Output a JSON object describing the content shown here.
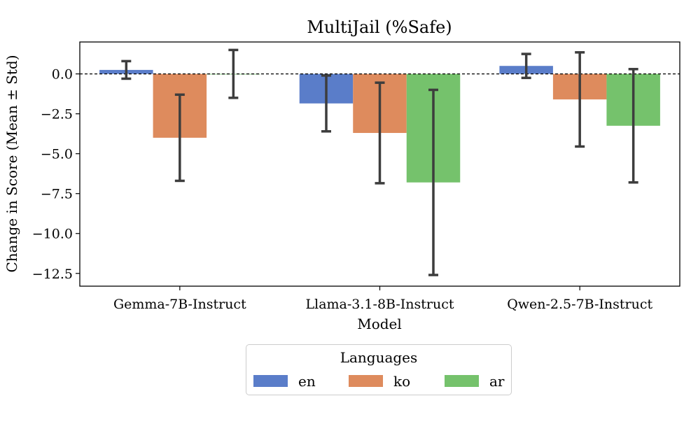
{
  "chart_data": {
    "type": "bar",
    "title": "MultiJail (%Safe)",
    "xlabel": "Model",
    "ylabel": "Change in Score (Mean ± Std)",
    "categories": [
      "Gemma-7B-Instruct",
      "Llama-3.1-8B-Instruct",
      "Qwen-2.5-7B-Instruct"
    ],
    "series": [
      {
        "name": "en",
        "color": "#5A7DC9",
        "values": [
          0.25,
          -1.85,
          0.5
        ],
        "std": [
          0.55,
          1.75,
          0.75
        ]
      },
      {
        "name": "ko",
        "color": "#DE8B5D",
        "values": [
          -4.0,
          -3.7,
          -1.6
        ],
        "std": [
          2.7,
          3.15,
          2.95
        ]
      },
      {
        "name": "ar",
        "color": "#75C26C",
        "values": [
          0.0,
          -6.8,
          -3.25
        ],
        "std": [
          1.5,
          5.8,
          3.55
        ]
      }
    ],
    "ylim": [
      -13.3,
      2.0
    ],
    "yticks": [
      0.0,
      -2.5,
      -5.0,
      -7.5,
      -10.0,
      -12.5
    ],
    "ytick_labels": [
      "0.0",
      "−2.5",
      "−5.0",
      "−7.5",
      "−10.0",
      "−12.5"
    ],
    "reference_line": 0,
    "legend": {
      "title": "Languages",
      "entries": [
        "en",
        "ko",
        "ar"
      ],
      "placement": "bottom-center"
    }
  }
}
